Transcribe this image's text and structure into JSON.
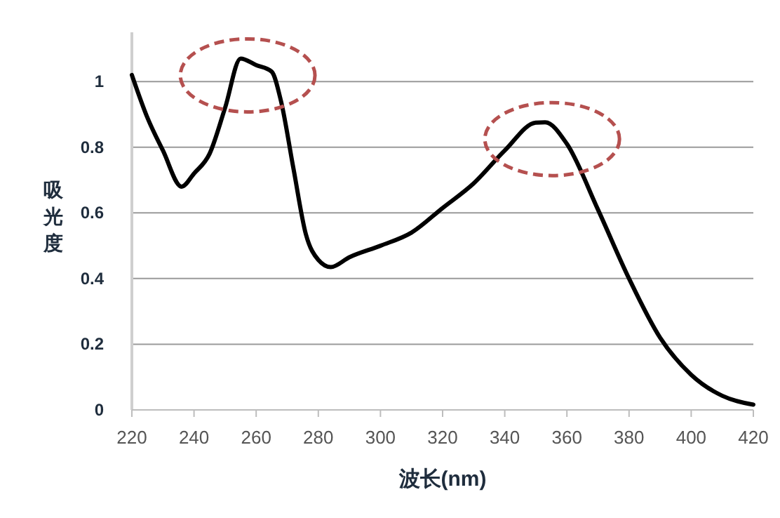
{
  "chart_data": {
    "type": "line",
    "xlabel": "波长(nm)",
    "ylabel": "吸光度",
    "x": [
      220,
      225,
      230,
      236,
      240,
      245,
      250,
      255,
      260,
      265,
      268,
      272,
      276,
      280,
      284,
      290,
      300,
      310,
      320,
      330,
      340,
      350,
      353,
      360,
      370,
      380,
      390,
      400,
      410,
      420
    ],
    "series": [
      {
        "color": "#000000",
        "values": [
          1.02,
          0.89,
          0.79,
          0.68,
          0.72,
          0.78,
          0.92,
          1.07,
          1.05,
          1.03,
          0.94,
          0.735,
          0.535,
          0.457,
          0.435,
          0.465,
          0.5,
          0.54,
          0.615,
          0.69,
          0.79,
          0.875,
          0.876,
          0.81,
          0.61,
          0.4,
          0.22,
          0.107,
          0.043,
          0.016
        ]
      }
    ],
    "xlim": [
      220,
      420
    ],
    "xticks": [
      220,
      240,
      260,
      280,
      300,
      320,
      340,
      360,
      380,
      400,
      420
    ],
    "ylim": [
      0,
      1.15
    ],
    "yticks": [
      0,
      0.2,
      0.4,
      0.6,
      0.8,
      1
    ],
    "grid": "y",
    "marker": "none",
    "line_style": "solid"
  }
}
